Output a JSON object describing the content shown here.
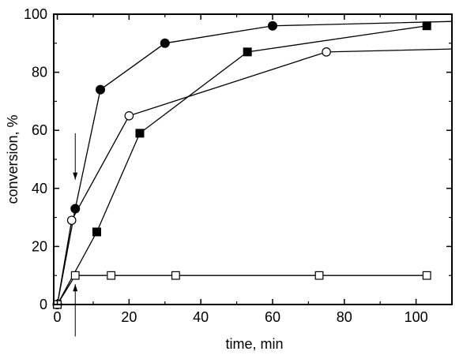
{
  "chart_data": {
    "type": "line",
    "xlabel": "time, min",
    "ylabel": "conversion, %",
    "xlim": [
      -1,
      110
    ],
    "ylim": [
      0,
      100
    ],
    "xticks": [
      0,
      20,
      40,
      60,
      80,
      100
    ],
    "yticks": [
      0,
      20,
      40,
      60,
      80,
      100
    ],
    "grid": false,
    "series": [
      {
        "marker": "filled-circle",
        "color": "#000000",
        "x": [
          0,
          5,
          12,
          30,
          60,
          110
        ],
        "y": [
          0,
          33,
          74,
          90,
          96,
          97.5
        ],
        "marker_count": 5
      },
      {
        "marker": "filled-square",
        "color": "#000000",
        "x": [
          0,
          11,
          23,
          53,
          103
        ],
        "y": [
          0,
          25,
          59,
          87,
          96
        ],
        "marker_count": 5
      },
      {
        "marker": "open-circle",
        "color": "#000000",
        "x": [
          0,
          4,
          20,
          75,
          110
        ],
        "y": [
          0,
          29,
          65,
          87,
          88
        ],
        "marker_count": 4
      },
      {
        "marker": "open-square",
        "color": "#000000",
        "x": [
          0,
          5,
          15,
          33,
          73,
          103
        ],
        "y": [
          0,
          10,
          10,
          10,
          10,
          10
        ],
        "marker_count": 6
      }
    ],
    "annotations": [
      {
        "type": "arrow-down",
        "x": 5,
        "y_from": 59,
        "y_to": 43
      },
      {
        "type": "arrow-up",
        "x": 5,
        "y_from": -11,
        "y_to": 7
      }
    ]
  }
}
